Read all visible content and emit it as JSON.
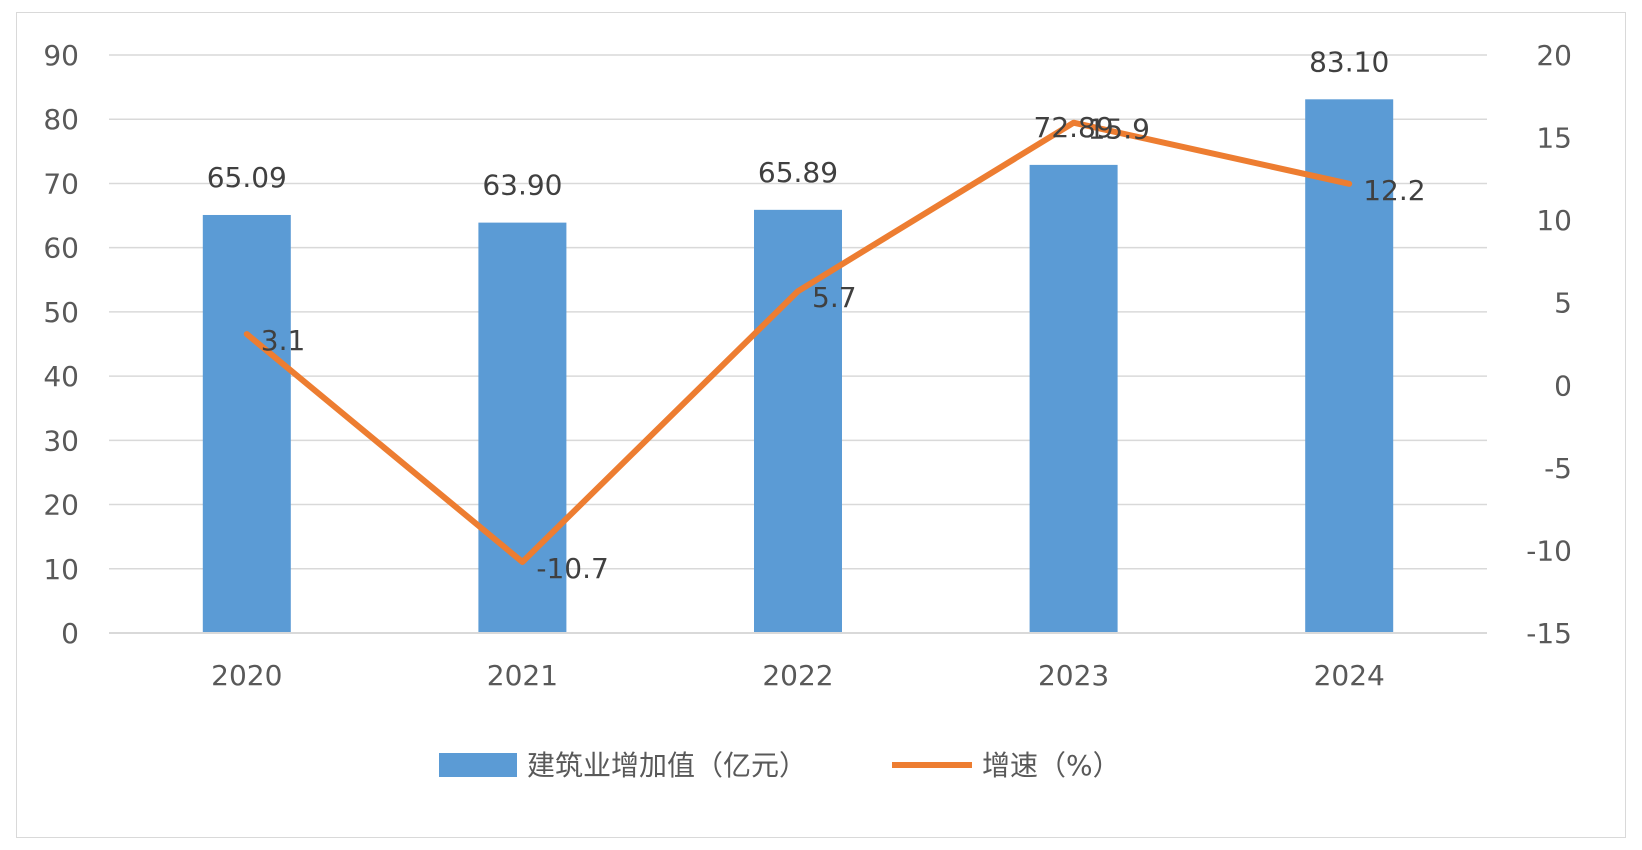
{
  "chart_data": {
    "type": "bar",
    "categories": [
      "2020",
      "2021",
      "2022",
      "2023",
      "2024"
    ],
    "series": [
      {
        "name": "建筑业增加值（亿元）",
        "type": "bar",
        "axis": "left",
        "values": [
          65.09,
          63.9,
          65.89,
          72.89,
          83.1
        ],
        "labels": [
          "65.09",
          "63.90",
          "65.89",
          "72.89",
          "83.10"
        ],
        "color": "#5b9bd5"
      },
      {
        "name": "增速（%）",
        "type": "line",
        "axis": "right",
        "values": [
          3.1,
          -10.7,
          5.7,
          15.9,
          12.2
        ],
        "labels": [
          "3.1",
          "-10.7",
          "5.7",
          "15.9",
          "12.2"
        ],
        "color": "#ed7d31"
      }
    ],
    "y_left": {
      "range": [
        0,
        90
      ],
      "ticks": [
        "0",
        "10",
        "20",
        "30",
        "40",
        "50",
        "60",
        "70",
        "80",
        "90"
      ]
    },
    "y_right": {
      "range": [
        -15,
        20
      ],
      "ticks": [
        "-15",
        "-10",
        "-5",
        "0",
        "5",
        "10",
        "15",
        "20"
      ]
    },
    "grid": true,
    "legend_position": "bottom"
  }
}
